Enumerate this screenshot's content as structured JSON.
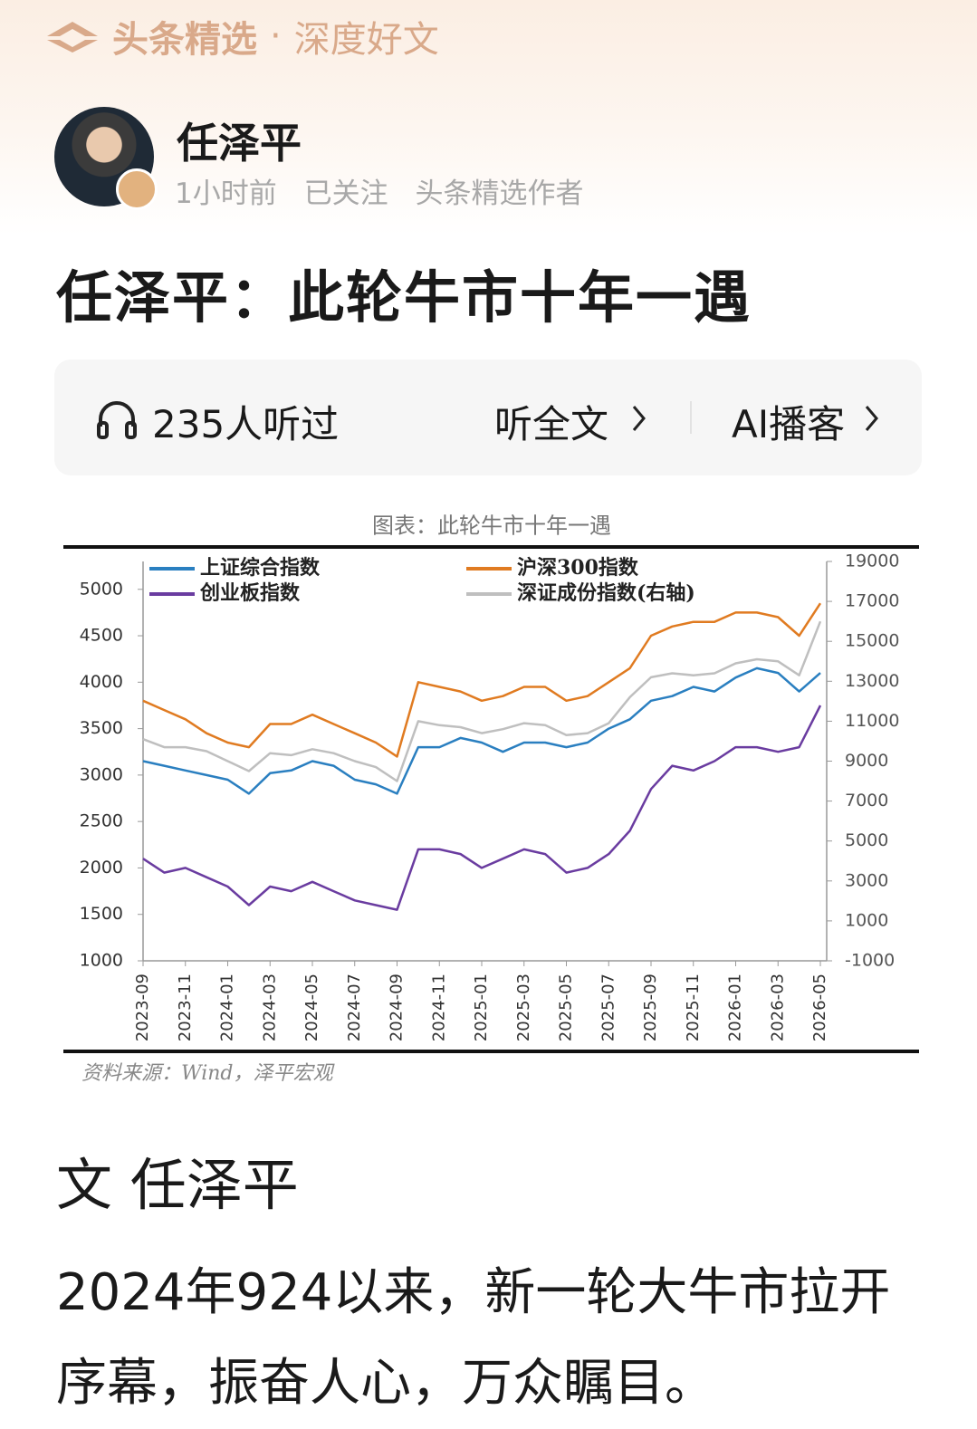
{
  "header": {
    "brand": "头条精选",
    "separator": "·",
    "slogan": "深度好文"
  },
  "author": {
    "name": "任泽平",
    "time": "1小时前",
    "follow": "已关注",
    "role": "头条精选作者"
  },
  "article": {
    "title": "任泽平：此轮牛市十年一遇",
    "audio": {
      "listeners": "235人听过",
      "listen": "听全文",
      "podcast": "AI播客"
    },
    "byline": "文 任泽平",
    "body": "2024年924以来，新一轮大牛市拉开序幕，振奋人心，万众瞩目。"
  },
  "chart_data": {
    "type": "line",
    "title": "图表：此轮牛市十年一遇",
    "source": "资料来源：Wind，泽平宏观",
    "x": [
      "2023-09",
      "2023-10",
      "2023-11",
      "2023-12",
      "2024-01",
      "2024-02",
      "2024-03",
      "2024-04",
      "2024-05",
      "2024-06",
      "2024-07",
      "2024-08",
      "2024-09",
      "2024-10",
      "2024-11",
      "2024-12",
      "2025-01",
      "2025-02",
      "2025-03",
      "2025-04",
      "2025-05",
      "2025-06",
      "2025-07",
      "2025-08",
      "2025-09",
      "2025-10",
      "2025-11",
      "2025-12",
      "2026-01",
      "2026-02",
      "2026-03",
      "2026-04",
      "2026-05"
    ],
    "xlim": [
      "2023-09",
      "2026-05"
    ],
    "xticks": [
      "2023-09",
      "2023-11",
      "2024-01",
      "2024-03",
      "2024-05",
      "2024-07",
      "2024-09",
      "2024-11",
      "2025-01",
      "2025-03",
      "2025-05",
      "2025-07",
      "2025-09",
      "2025-11",
      "2026-01",
      "2026-03",
      "2026-05"
    ],
    "ylim": [
      1000,
      5300
    ],
    "yticks": [
      1000,
      1500,
      2000,
      2500,
      3000,
      3500,
      4000,
      4500,
      5000
    ],
    "y2lim": [
      -1000,
      19000
    ],
    "y2ticks": [
      -1000,
      1000,
      3000,
      5000,
      7000,
      9000,
      11000,
      13000,
      15000,
      17000,
      19000
    ],
    "legend": "top",
    "series": [
      {
        "name": "上证综合指数",
        "color": "#2a7fc0",
        "values": [
          3150,
          3100,
          3050,
          3000,
          2950,
          2800,
          3020,
          3050,
          3150,
          3100,
          2950,
          2900,
          2800,
          3300,
          3300,
          3400,
          3350,
          3250,
          3350,
          3350,
          3300,
          3350,
          3500,
          3600,
          3800,
          3850,
          3950,
          3900,
          4050,
          4150,
          4100,
          3900,
          4100
        ]
      },
      {
        "name": "沪深300指数",
        "color": "#e07b21",
        "values": [
          3800,
          3700,
          3600,
          3450,
          3350,
          3300,
          3550,
          3550,
          3650,
          3550,
          3450,
          3350,
          3200,
          4000,
          3950,
          3900,
          3800,
          3850,
          3950,
          3950,
          3800,
          3850,
          4000,
          4150,
          4500,
          4600,
          4650,
          4650,
          4750,
          4750,
          4700,
          4500,
          4850
        ]
      },
      {
        "name": "创业板指数",
        "color": "#6a3ca0",
        "values": [
          2100,
          1950,
          2000,
          1900,
          1800,
          1600,
          1800,
          1750,
          1850,
          1750,
          1650,
          1600,
          1550,
          2200,
          2200,
          2150,
          2000,
          2100,
          2200,
          2150,
          1950,
          2000,
          2150,
          2400,
          2850,
          3100,
          3050,
          3150,
          3300,
          3300,
          3250,
          3300,
          3750
        ]
      },
      {
        "name": "深证成份指数(右轴)",
        "color": "#bfbfbf",
        "axis": "y2",
        "values": [
          10100,
          9700,
          9700,
          9500,
          9000,
          8500,
          9400,
          9300,
          9600,
          9400,
          9000,
          8700,
          8000,
          11000,
          10800,
          10700,
          10400,
          10600,
          10900,
          10800,
          10300,
          10400,
          10900,
          12200,
          13200,
          13400,
          13300,
          13400,
          13900,
          14100,
          14000,
          13300,
          16000
        ]
      }
    ]
  }
}
